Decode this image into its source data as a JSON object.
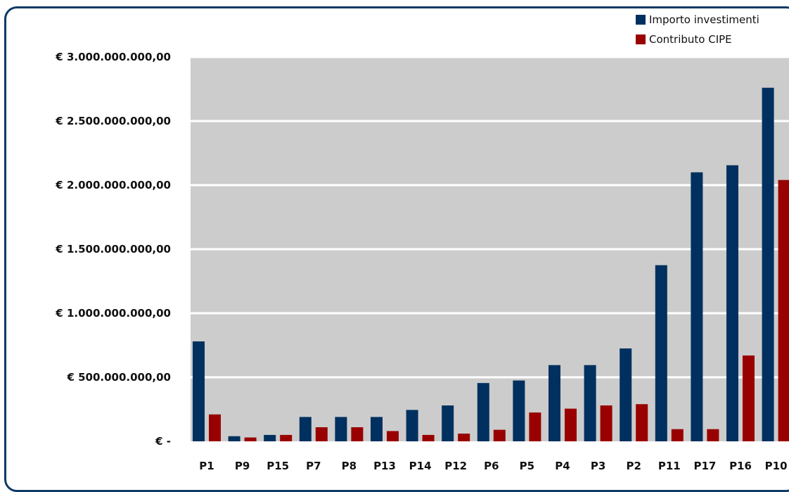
{
  "chart_data": {
    "type": "bar",
    "title": "",
    "xlabel": "",
    "ylabel": "",
    "ylim": [
      0,
      3000000000
    ],
    "grid": true,
    "legend_position": "top-right",
    "categories": [
      "P1",
      "P9",
      "P15",
      "P7",
      "P8",
      "P13",
      "P14",
      "P12",
      "P6",
      "P5",
      "P4",
      "P3",
      "P2",
      "P11",
      "P17",
      "P16",
      "P10"
    ],
    "y_ticks": [
      {
        "value": 0,
        "label": "€ -"
      },
      {
        "value": 500000000,
        "label": "€ 500.000.000,00"
      },
      {
        "value": 1000000000,
        "label": "€ 1.000.000.000,00"
      },
      {
        "value": 1500000000,
        "label": "€ 1.500.000.000,00"
      },
      {
        "value": 2000000000,
        "label": "€ 2.000.000.000,00"
      },
      {
        "value": 2500000000,
        "label": "€ 2.500.000.000,00"
      },
      {
        "value": 3000000000,
        "label": "€ 3.000.000.000,00"
      }
    ],
    "series": [
      {
        "name": "Importo investimenti",
        "color": "#00305f",
        "values": [
          780000000,
          40000000,
          50000000,
          190000000,
          190000000,
          190000000,
          245000000,
          280000000,
          455000000,
          475000000,
          595000000,
          595000000,
          725000000,
          1375000000,
          2100000000,
          2155000000,
          2760000000
        ]
      },
      {
        "name": "Contributo CIPE",
        "color": "#990000",
        "values": [
          210000000,
          30000000,
          50000000,
          110000000,
          110000000,
          80000000,
          50000000,
          60000000,
          90000000,
          225000000,
          255000000,
          280000000,
          290000000,
          95000000,
          95000000,
          670000000,
          2040000000
        ]
      }
    ],
    "plot_background": "#cccccc",
    "grid_color": "#ffffff"
  }
}
